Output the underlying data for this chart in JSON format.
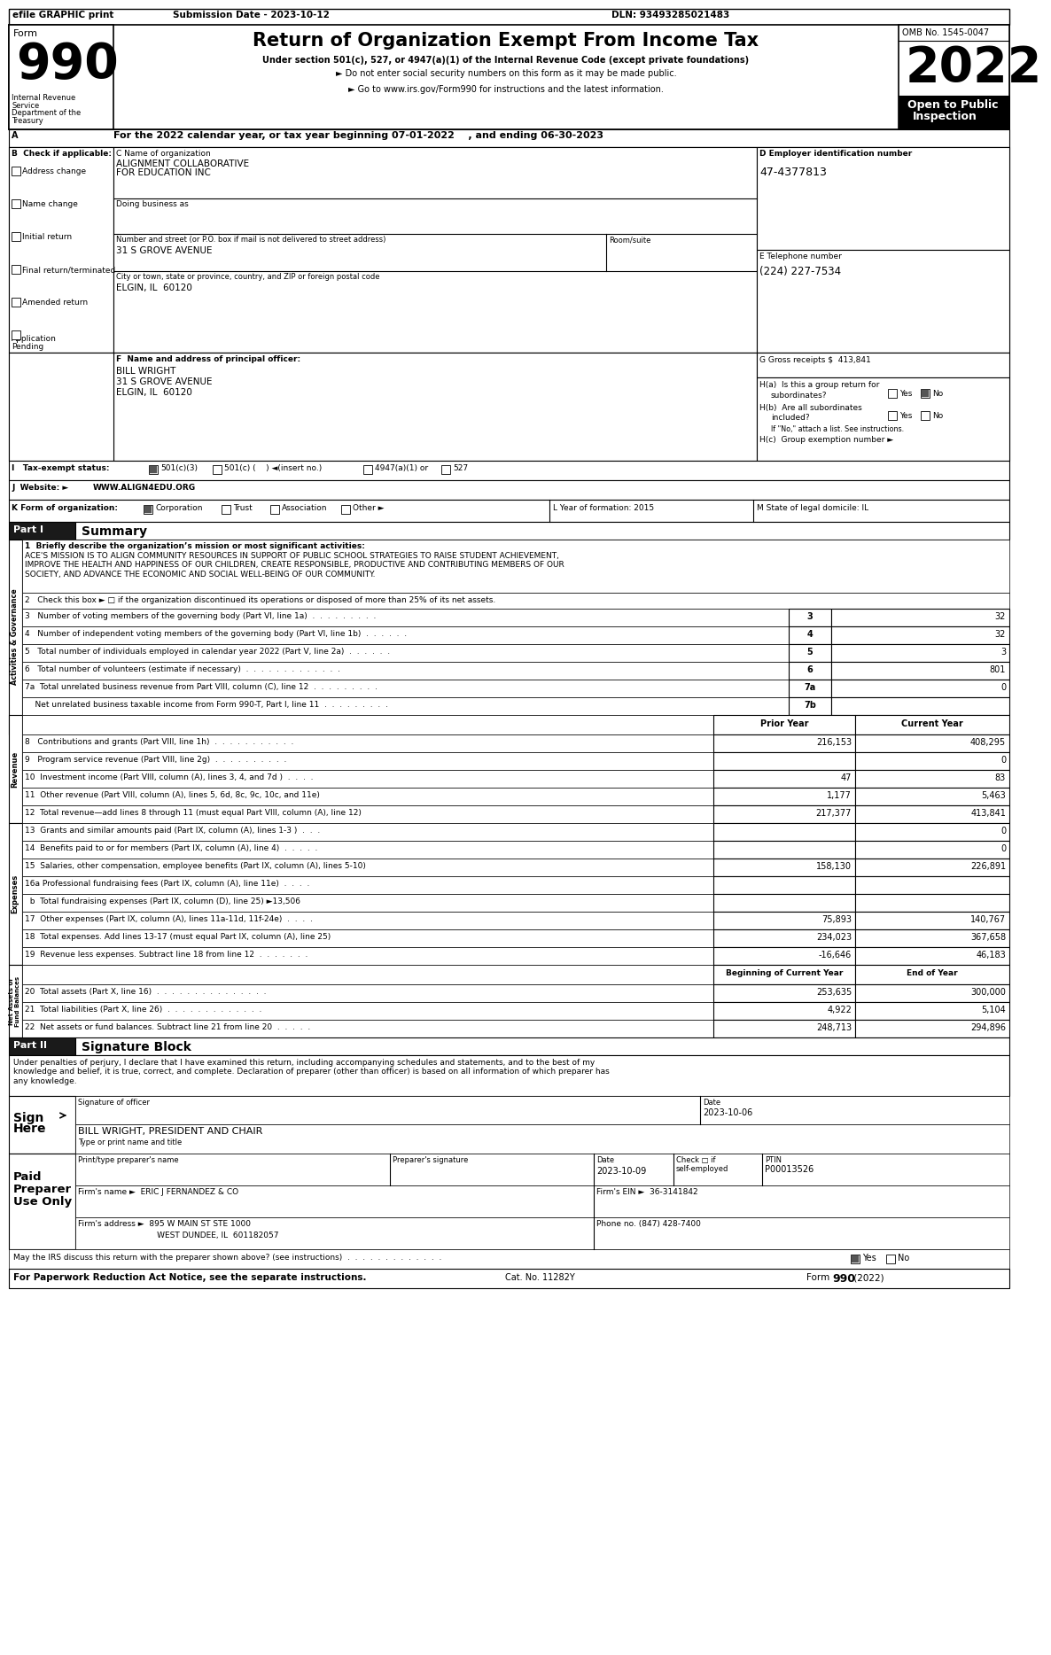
{
  "efile_text": "efile GRAPHIC print",
  "submission_date": "Submission Date - 2023-10-12",
  "dln": "DLN: 93493285021483",
  "title": "Return of Organization Exempt From Income Tax",
  "subtitle1": "Under section 501(c), 527, or 4947(a)(1) of the Internal Revenue Code (except private foundations)",
  "subtitle2": "► Do not enter social security numbers on this form as it may be made public.",
  "subtitle3": "► Go to www.irs.gov/Form990 for instructions and the latest information.",
  "omb": "OMB No. 1545-0047",
  "year": "2022",
  "dept": "Department of the\nTreasury\nInternal Revenue\nService",
  "tax_year_line": "For the 2022 calendar year, or tax year beginning 07-01-2022    , and ending 06-30-2023",
  "org_name1": "ALIGNMENT COLLABORATIVE",
  "org_name2": "FOR EDUCATION INC",
  "doing_business": "Doing business as",
  "street_label": "Number and street (or P.O. box if mail is not delivered to street address)",
  "street": "31 S GROVE AVENUE",
  "room_label": "Room/suite",
  "city_label": "City or town, state or province, country, and ZIP or foreign postal code",
  "city": "ELGIN, IL  60120",
  "ein": "47-4377813",
  "phone": "(224) 227-7534",
  "gross_receipts": "413,841",
  "officer_name": "BILL WRIGHT",
  "officer_street": "31 S GROVE AVENUE",
  "officer_city": "ELGIN, IL  60120",
  "j_website": "WWW.ALIGN4EDU.ORG",
  "mission": "ACE'S MISSION IS TO ALIGN COMMUNITY RESOURCES IN SUPPORT OF PUBLIC SCHOOL STRATEGIES TO RAISE STUDENT ACHIEVEMENT,\nIMPROVE THE HEALTH AND HAPPINESS OF OUR CHILDREN, CREATE RESPONSIBLE, PRODUCTIVE AND CONTRIBUTING MEMBERS OF OUR\nSOCIETY, AND ADVANCE THE ECONOMIC AND SOCIAL WELL-BEING OF OUR COMMUNITY.",
  "line3_val": "32",
  "line4_val": "32",
  "line5_val": "3",
  "line6_val": "801",
  "line7a_val": "0",
  "line8_prior": "216,153",
  "line8_current": "408,295",
  "line9_prior": "",
  "line9_current": "0",
  "line10_prior": "47",
  "line10_current": "83",
  "line11_prior": "1,177",
  "line11_current": "5,463",
  "line12_prior": "217,377",
  "line12_current": "413,841",
  "line13_prior": "",
  "line13_current": "0",
  "line14_prior": "",
  "line14_current": "0",
  "line15_prior": "158,130",
  "line15_current": "226,891",
  "line16a_prior": "",
  "line16a_current": "",
  "line17_prior": "75,893",
  "line17_current": "140,767",
  "line18_prior": "234,023",
  "line18_current": "367,658",
  "line19_prior": "-16,646",
  "line19_current": "46,183",
  "line20_prior": "253,635",
  "line20_current": "300,000",
  "line21_prior": "4,922",
  "line21_current": "5,104",
  "line22_prior": "248,713",
  "line22_current": "294,896",
  "sig_text": "Under penalties of perjury, I declare that I have examined this return, including accompanying schedules and statements, and to the best of my\nknowledge and belief, it is true, correct, and complete. Declaration of preparer (other than officer) is based on all information of which preparer has\nany knowledge.",
  "sig_date": "2023-10-06",
  "officer_title": "BILL WRIGHT, PRESIDENT AND CHAIR",
  "preparer_date": "2023-10-09",
  "ptin": "P00013526",
  "firm_name": "ERIC J FERNANDEZ & CO",
  "firm_ein": "36-3141842",
  "firm_address": "895 W MAIN ST STE 1000",
  "firm_city": "WEST DUNDEE, IL  601182057",
  "firm_phone": "(847) 428-7400"
}
